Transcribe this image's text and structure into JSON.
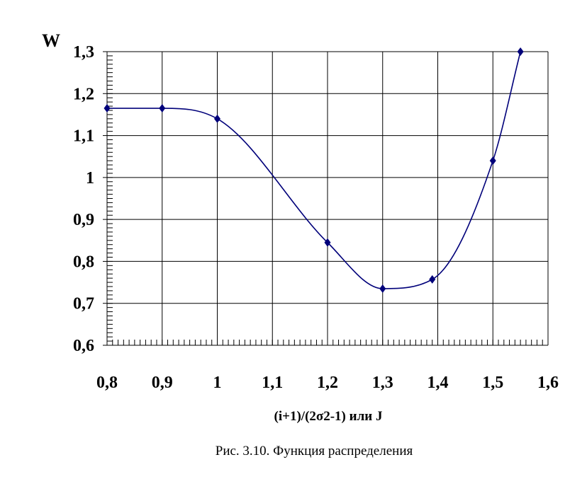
{
  "chart_data": {
    "type": "line",
    "ylabel": "W",
    "xlabel": "(i+1)/(2σ2-1) или J",
    "caption": "Рис. 3.10. Функция распределения",
    "xlim": [
      0.8,
      1.6
    ],
    "ylim": [
      0.6,
      1.3
    ],
    "x_ticks": [
      "0,8",
      "0,9",
      "1",
      "1,1",
      "1,2",
      "1,3",
      "1,4",
      "1,5",
      "1,6"
    ],
    "y_ticks": [
      "0,6",
      "0,7",
      "0,8",
      "0,9",
      "1",
      "1,1",
      "1,2",
      "1,3"
    ],
    "grid": true,
    "series": [
      {
        "color": "#00007a",
        "marker": "diamond",
        "smooth": true,
        "x": [
          0.8,
          0.9,
          1.0,
          1.2,
          1.3,
          1.39,
          1.5,
          1.55
        ],
        "y": [
          1.165,
          1.165,
          1.14,
          0.845,
          0.735,
          0.757,
          1.04,
          1.3
        ]
      }
    ]
  }
}
